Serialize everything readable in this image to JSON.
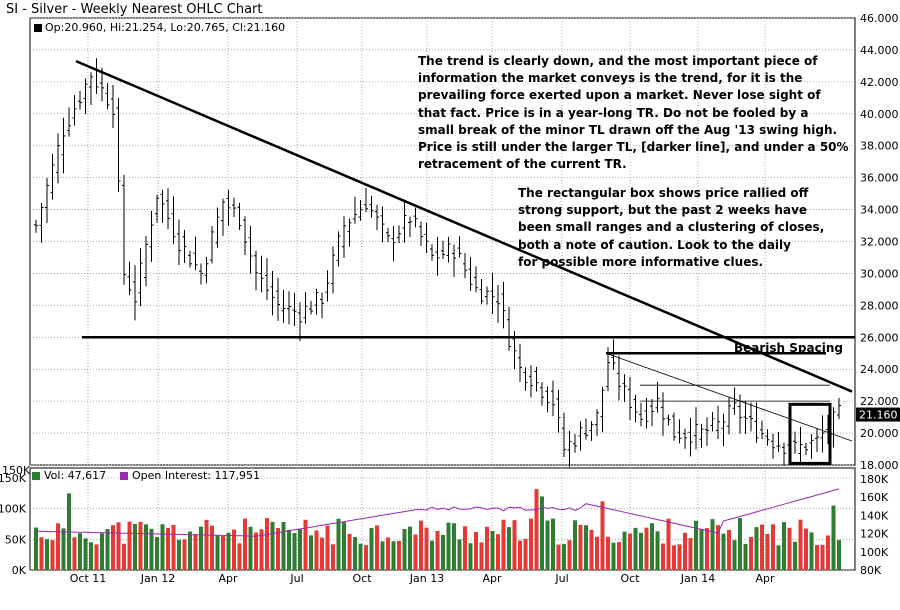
{
  "chart_title": "SI - Silver - Weekly Nearest OHLC Chart",
  "ohlc_readout": "Op:20.960, Hi:21.254, Lo:20.765, Cl:21.160",
  "last_price_label": "21.160",
  "colors": {
    "up_volume": "#2e7d32",
    "down_volume": "#e53935",
    "open_interest": "#9c27b0",
    "last_price_bg": "#000000",
    "grid": "#999999"
  },
  "annotations": {
    "note1": [
      "The trend is clearly down, and the most important piece of",
      "information the market conveys is the trend, for it is the",
      "prevailing force exerted upon a market.  Never lose sight of",
      "that fact.  Price is in a year-long TR.  Do not  be fooled by a",
      "small break of the minor TL drawn off the Aug '13 swing high.",
      "Price is still under the larger TL, [darker line], and under a 50%",
      "retracement of the current TR."
    ],
    "note2": [
      "The rectangular box shows price rallied off",
      "strong support, but the past 2 weeks have",
      "    been small ranges and a clustering of closes,",
      "        both a note of caution.  Look to the daily",
      "              for possible more informative clues."
    ],
    "bearish_label": "Bearish Spacing"
  },
  "volume_panel": {
    "vol_label": "Vol: 47,617",
    "oi_label": "Open Interest: 117,951",
    "top_left_label": "150K"
  },
  "chart_data": [
    {
      "type": "ohlc",
      "title": "SI - Silver - Weekly Nearest OHLC Chart",
      "xlabel": "",
      "ylabel": "",
      "ylim": [
        18,
        46
      ],
      "y_ticks": [
        "18.000",
        "20.000",
        "22.000",
        "24.000",
        "26.000",
        "28.000",
        "30.000",
        "32.000",
        "34.000",
        "36.000",
        "38.000",
        "40.000",
        "42.000",
        "44.000",
        "46.000"
      ],
      "x_ticks": [
        "Oct 11",
        "Jan 12",
        "Apr",
        "Jul",
        "Oct",
        "Jan 13",
        "Apr",
        "Jul",
        "Oct",
        "Jan 14",
        "Apr"
      ],
      "grid": true,
      "weeks": 147,
      "close_anchors": [
        [
          0,
          33
        ],
        [
          5,
          39
        ],
        [
          10,
          42.5
        ],
        [
          14,
          40.5
        ],
        [
          16,
          30
        ],
        [
          18,
          28.5
        ],
        [
          22,
          35
        ],
        [
          26,
          32
        ],
        [
          30,
          30
        ],
        [
          34,
          34.5
        ],
        [
          37,
          33.5
        ],
        [
          40,
          30
        ],
        [
          44,
          28
        ],
        [
          48,
          27.5
        ],
        [
          52,
          28.5
        ],
        [
          56,
          33
        ],
        [
          60,
          34.5
        ],
        [
          64,
          32
        ],
        [
          68,
          33.5
        ],
        [
          72,
          31
        ],
        [
          76,
          31.5
        ],
        [
          80,
          29
        ],
        [
          84,
          28.5
        ],
        [
          86,
          26
        ],
        [
          88,
          24
        ],
        [
          90,
          23.5
        ],
        [
          94,
          22
        ],
        [
          96,
          19
        ],
        [
          99,
          20
        ],
        [
          102,
          21
        ],
        [
          104,
          24.5
        ],
        [
          107,
          22.5
        ],
        [
          110,
          21
        ],
        [
          113,
          22
        ],
        [
          116,
          20
        ],
        [
          121,
          20
        ],
        [
          124,
          20.5
        ],
        [
          127,
          21.5
        ],
        [
          130,
          20.5
        ],
        [
          134,
          19.5
        ],
        [
          138,
          19
        ],
        [
          142,
          19.5
        ],
        [
          146,
          21.16
        ]
      ],
      "trendlines": [
        {
          "name": "major-downtrend",
          "from": [
            "Aug 2011",
            43.3
          ],
          "to": [
            "May 2014",
            22.6
          ]
        },
        {
          "name": "minor-downtrend",
          "from": [
            "Aug 2013",
            25
          ],
          "to": [
            "Jun 2014",
            19.5
          ]
        },
        {
          "name": "support",
          "from": [
            "Sep 2011",
            26
          ],
          "to": [
            "Jun 2014",
            26
          ]
        },
        {
          "name": "resistance-short",
          "from": [
            "Aug 2013",
            25
          ],
          "to": [
            "Jun 2014",
            25
          ]
        }
      ],
      "last_close": 21.16
    },
    {
      "type": "bar",
      "title": "",
      "series": [
        {
          "name": "Vol",
          "last": 47617
        },
        {
          "name": "Open Interest",
          "last": 117951
        }
      ],
      "left_axis": [
        "0K",
        "50K",
        "100K",
        "150K"
      ],
      "right_axis": [
        "80K",
        "100K",
        "120K",
        "140K",
        "160K",
        "180K"
      ],
      "grid": true
    }
  ]
}
